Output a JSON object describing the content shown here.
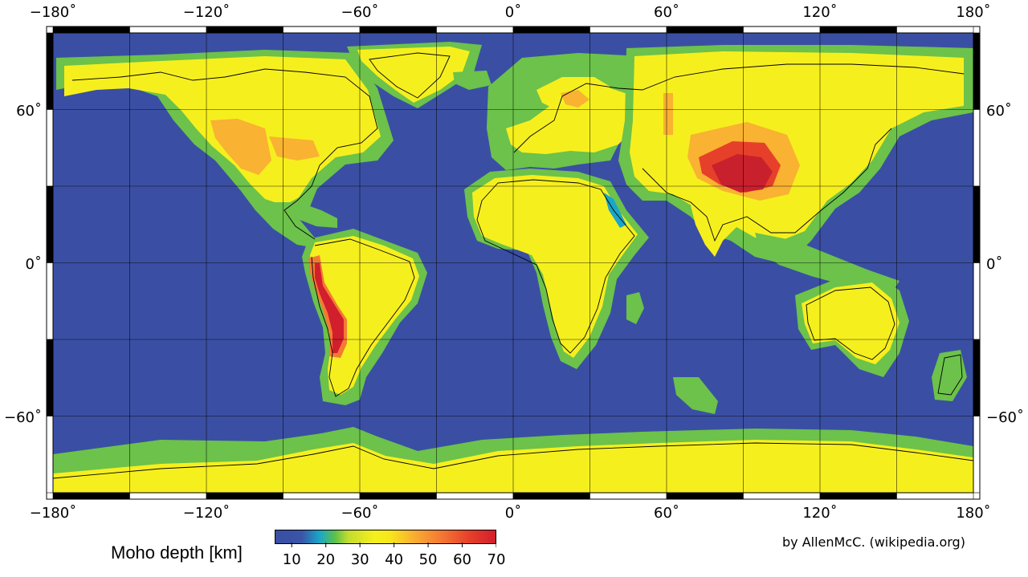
{
  "map": {
    "projection": "equirectangular",
    "lon_range": [
      -180,
      180
    ],
    "lat_range": [
      -90,
      90
    ],
    "grid": true,
    "top_ticks": [
      "−180˚",
      "−120˚",
      "−60˚",
      "0˚",
      "60˚",
      "120˚",
      "180˚"
    ],
    "bottom_ticks": [
      "−180˚",
      "−120˚",
      "−60˚",
      "0˚",
      "60˚",
      "120˚",
      "180˚"
    ],
    "left_ticks": [
      "60˚",
      "0˚",
      "−60˚"
    ],
    "right_ticks": [
      "60˚",
      "0˚",
      "−60˚"
    ],
    "colors": {
      "ocean": "#3a4fa3",
      "thin_crust": "#1aa6c9",
      "transition": "#6cc24a",
      "continent": "#f6ef1e",
      "thick": "#f9b231",
      "very_thick": "#e6402a",
      "extreme": "#c9202e"
    }
  },
  "colorbar": {
    "title": "Moho depth [km]",
    "labels": [
      "10",
      "20",
      "30",
      "40",
      "50",
      "60",
      "70"
    ],
    "range": [
      5,
      70
    ]
  },
  "credit": "by AllenMcC. (wikipedia.org)"
}
